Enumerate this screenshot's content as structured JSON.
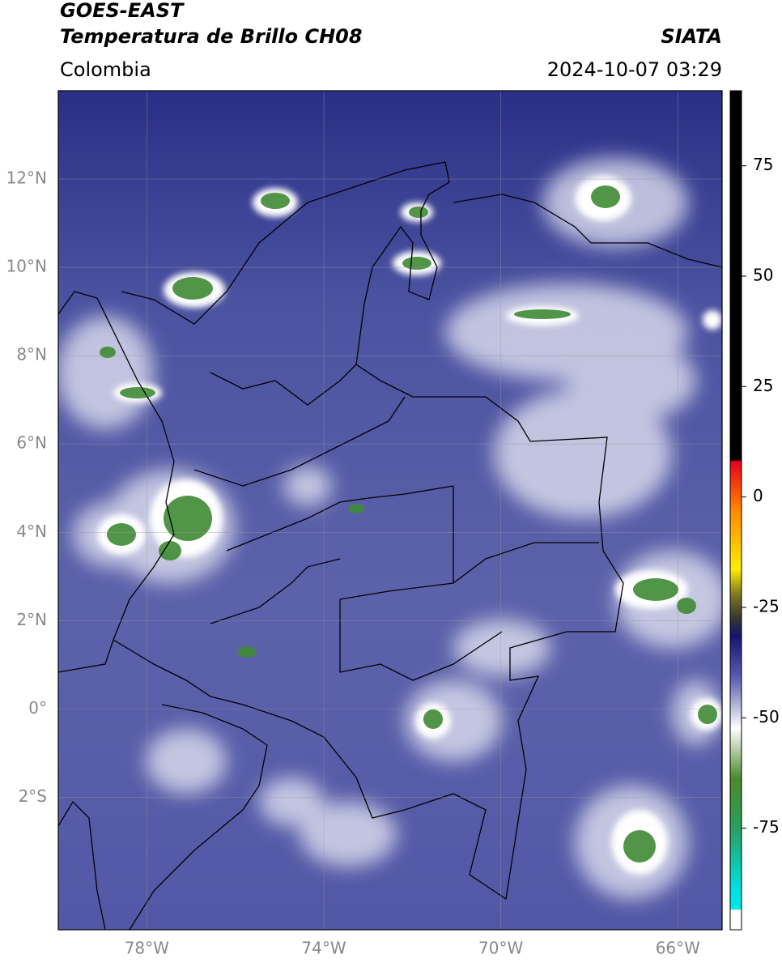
{
  "header": {
    "satellite": "GOES-EAST",
    "product": "Temperatura de Brillo CH08",
    "source": "SIATA",
    "region": "Colombia",
    "datetime": "2024-10-07 03:29"
  },
  "map": {
    "xlim": [
      -80,
      -65
    ],
    "ylim": [
      -5,
      14
    ],
    "xticks": [
      {
        "value": -78,
        "label": "78°W"
      },
      {
        "value": -74,
        "label": "74°W"
      },
      {
        "value": -70,
        "label": "70°W"
      },
      {
        "value": -66,
        "label": "66°W"
      }
    ],
    "yticks": [
      {
        "value": 12,
        "label": "12°N"
      },
      {
        "value": 10,
        "label": "10°N"
      },
      {
        "value": 8,
        "label": "8°N"
      },
      {
        "value": 6,
        "label": "6°N"
      },
      {
        "value": 4,
        "label": "4°N"
      },
      {
        "value": 2,
        "label": "2°N"
      },
      {
        "value": 0,
        "label": "0°"
      },
      {
        "value": -2,
        "label": "2°S"
      }
    ],
    "grid": true
  },
  "colorbar": {
    "lim": [
      -98,
      92
    ],
    "ticks": [
      75,
      50,
      25,
      0,
      -25,
      -50,
      -75
    ]
  }
}
